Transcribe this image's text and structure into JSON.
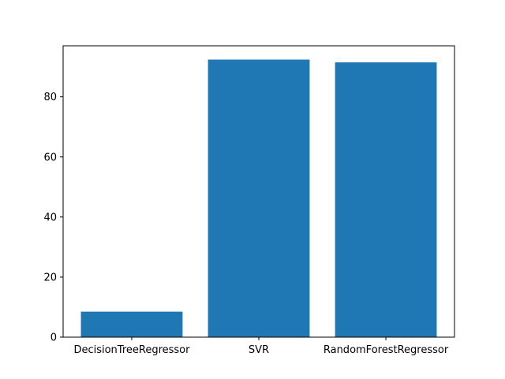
{
  "chart_data": {
    "type": "bar",
    "title": "",
    "xlabel": "",
    "ylabel": "",
    "categories": [
      "DecisionTreeRegressor",
      "SVR",
      "RandomForestRegressor"
    ],
    "values": [
      8.5,
      92.4,
      91.5
    ],
    "ylim": [
      0,
      97
    ],
    "yticks": [
      "0",
      "20",
      "40",
      "60",
      "80"
    ],
    "ytick_values": [
      0,
      20,
      40,
      60,
      80
    ],
    "bar_color": "#1f77b4",
    "grid": false,
    "legend": "none"
  }
}
